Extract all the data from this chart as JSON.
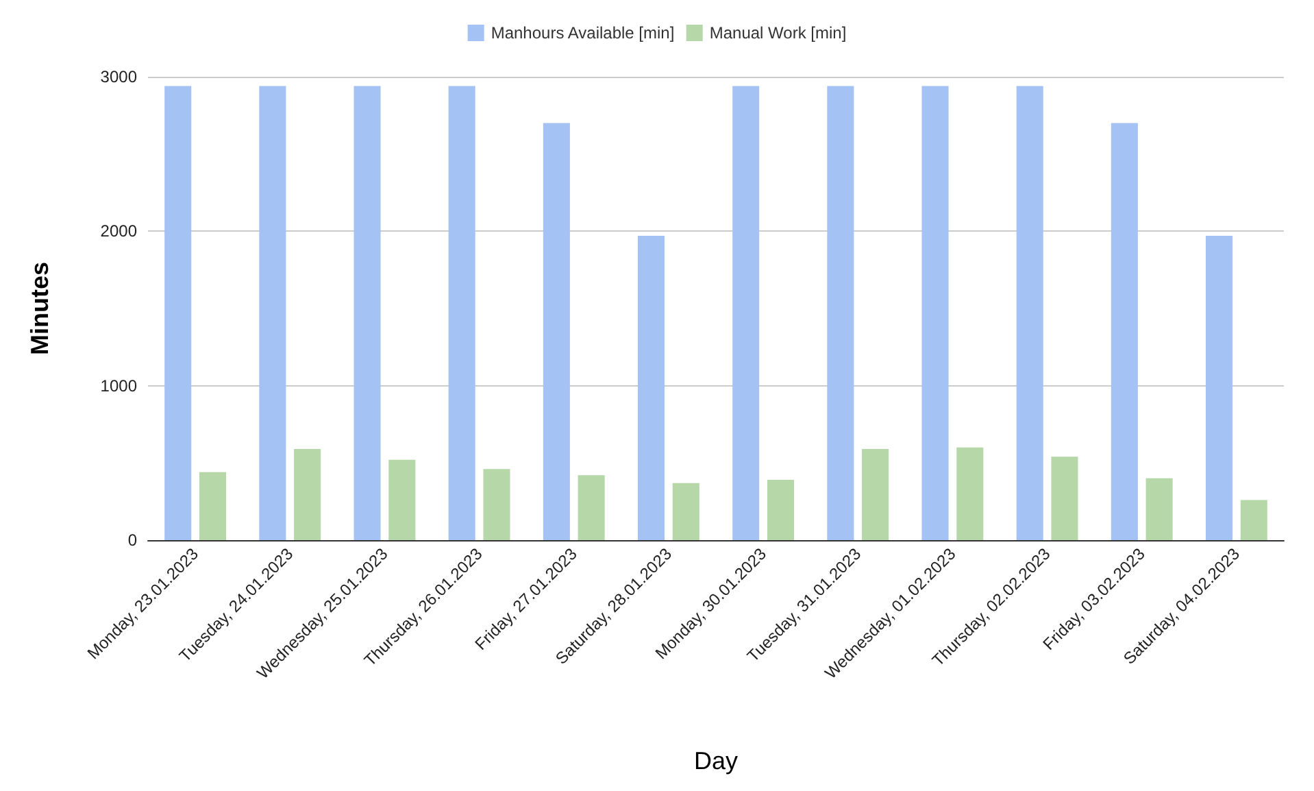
{
  "chart_data": {
    "type": "bar",
    "xlabel": "Day",
    "ylabel": "Minutes",
    "categories": [
      "Monday, 23.01.2023",
      "Tuesday, 24.01.2023",
      "Wednesday, 25.01.2023",
      "Thursday, 26.01.2023",
      "Friday, 27.01.2023",
      "Saturday, 28.01.2023",
      "Monday, 30.01.2023",
      "Tuesday, 31.01.2023",
      "Wednesday, 01.02.2023",
      "Thursday, 02.02.2023",
      "Friday, 03.02.2023",
      "Saturday, 04.02.2023"
    ],
    "series": [
      {
        "name": "Manhours Available [min]",
        "color": "#a4c2f4",
        "values": [
          2940,
          2940,
          2940,
          2940,
          2700,
          1970,
          2940,
          2940,
          2940,
          2940,
          2700,
          1970
        ]
      },
      {
        "name": "Manual Work [min]",
        "color": "#b6d7a8",
        "values": [
          440,
          590,
          520,
          460,
          420,
          370,
          390,
          590,
          600,
          540,
          400,
          260
        ]
      }
    ],
    "ylim": [
      0,
      3000
    ],
    "yticks": [
      0,
      1000,
      2000,
      3000
    ],
    "grid": "y",
    "legend": "top"
  }
}
